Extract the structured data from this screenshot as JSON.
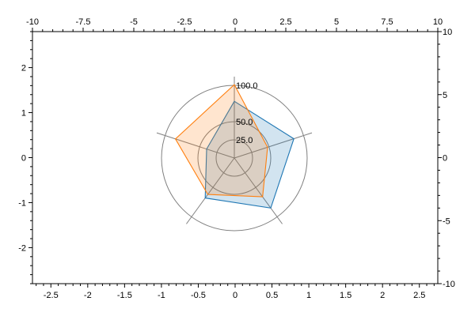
{
  "chart_data": {
    "type": "radar",
    "title": "",
    "radial_ticks": [
      25,
      50,
      100
    ],
    "radial_tick_labels": [
      "25.0",
      "50.0",
      "100.0"
    ],
    "radial_max": 100,
    "spokes": 5,
    "series": [
      {
        "values": [
          78,
          86,
          85,
          68,
          40
        ],
        "color": "#1f77b4"
      },
      {
        "values": [
          101,
          48,
          66,
          62,
          85
        ],
        "color": "#ff7f0e"
      }
    ],
    "axes": {
      "bottom": {
        "ticks": [
          -2.5,
          -2,
          -1.5,
          -1,
          -0.5,
          0,
          0.5,
          1,
          1.5,
          2,
          2.5
        ],
        "labels": [
          "-2.5",
          "-2",
          "-1.5",
          "-1",
          "-0.5",
          "0",
          "0.5",
          "1",
          "1.5",
          "2",
          "2.5"
        ],
        "range": [
          -2.75,
          2.75
        ]
      },
      "top": {
        "ticks": [
          -10,
          -7.5,
          -5,
          -2.5,
          0,
          2.5,
          5,
          7.5,
          10
        ],
        "labels": [
          "-10",
          "-7.5",
          "-5",
          "-2.5",
          "0",
          "2.5",
          "5",
          "7.5",
          "10"
        ],
        "range": [
          -10,
          10
        ]
      },
      "left": {
        "ticks": [
          -2,
          -1,
          0,
          1,
          2
        ],
        "labels": [
          "-2",
          "-1",
          "0",
          "1",
          "2"
        ],
        "range": [
          -2.8,
          2.8
        ]
      },
      "right": {
        "ticks": [
          -10,
          -5,
          0,
          5,
          10
        ],
        "labels": [
          "-10",
          "-5",
          "0",
          "5",
          "10"
        ],
        "range": [
          -10,
          10
        ]
      }
    },
    "grid": false,
    "legend": "none"
  },
  "colors": {
    "axis": "#000000",
    "grid_circle": "#808080",
    "spoke": "#808080"
  }
}
